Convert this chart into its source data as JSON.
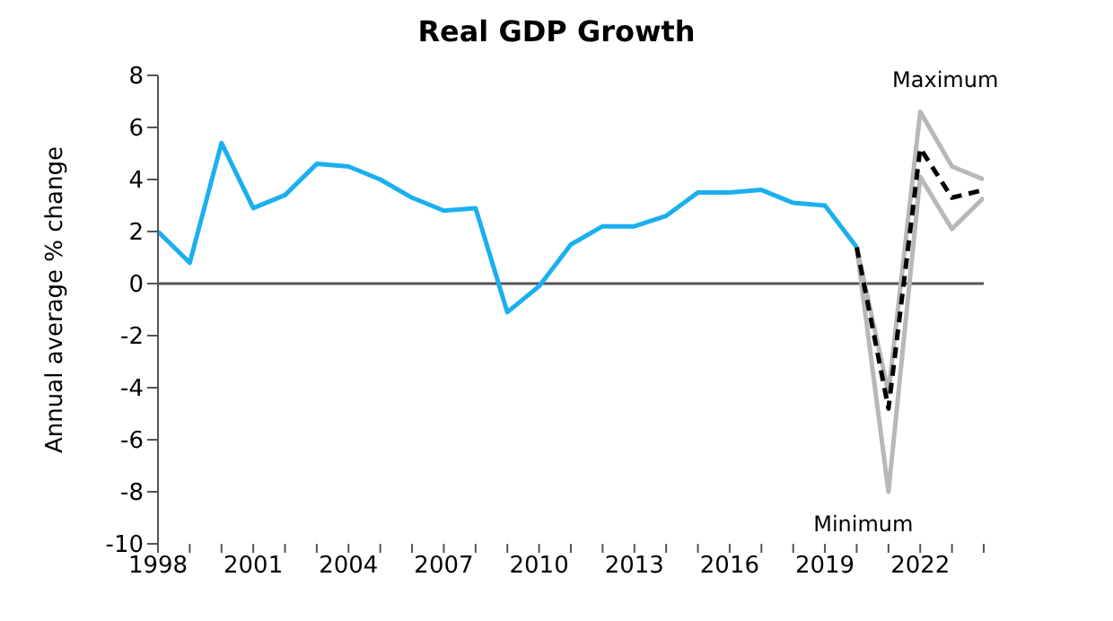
{
  "chart_data": {
    "type": "line",
    "title": "Real GDP Growth",
    "ylabel": "Annual average % change",
    "xlim": [
      1998,
      2024
    ],
    "ylim": [
      -10,
      8
    ],
    "yticks": [
      -10,
      -8,
      -6,
      -4,
      -2,
      0,
      2,
      4,
      6,
      8
    ],
    "xticks": [
      1998,
      {
        "value": 1999,
        "label": null
      },
      {
        "value": 2000,
        "label": null
      },
      2001,
      {
        "value": 2002,
        "label": null
      },
      {
        "value": 2003,
        "label": null
      },
      2004,
      {
        "value": 2005,
        "label": null
      },
      {
        "value": 2006,
        "label": null
      },
      2007,
      {
        "value": 2008,
        "label": null
      },
      {
        "value": 2009,
        "label": null
      },
      2010,
      {
        "value": 2011,
        "label": null
      },
      {
        "value": 2012,
        "label": null
      },
      2013,
      {
        "value": 2014,
        "label": null
      },
      {
        "value": 2015,
        "label": null
      },
      2016,
      {
        "value": 2017,
        "label": null
      },
      {
        "value": 2018,
        "label": null
      },
      2019,
      {
        "value": 2020,
        "label": null
      },
      {
        "value": 2021,
        "label": null
      },
      2022,
      {
        "value": 2023,
        "label": null
      },
      {
        "value": 2024,
        "label": null
      }
    ],
    "grid": false,
    "legend": false,
    "marker": "none",
    "ref_lines": [
      {
        "axis": "y",
        "value": 0,
        "color": "#555555"
      }
    ],
    "series": [
      {
        "color": "#1ab0f0",
        "line_style": "solid",
        "x": [
          1998,
          1999,
          2000,
          2001,
          2002,
          2003,
          2004,
          2005,
          2006,
          2007,
          2008,
          2009,
          2010,
          2011,
          2012,
          2013,
          2014,
          2015,
          2016,
          2017,
          2018,
          2019,
          2020
        ],
        "values": [
          2.0,
          0.8,
          5.4,
          2.9,
          3.4,
          4.6,
          4.5,
          4.0,
          3.3,
          2.8,
          2.9,
          -1.1,
          -0.1,
          1.5,
          2.2,
          2.2,
          2.6,
          3.5,
          3.5,
          3.6,
          3.1,
          3.0,
          1.4
        ]
      },
      {
        "name": "Maximum",
        "color": "#b8b8b8",
        "line_style": "solid",
        "x": [
          2020,
          2021,
          2022,
          2023,
          2024
        ],
        "values": [
          1.4,
          -4.2,
          6.6,
          4.5,
          4.0
        ]
      },
      {
        "name": "Minimum",
        "color": "#b8b8b8",
        "line_style": "solid",
        "x": [
          2020,
          2021,
          2022,
          2023,
          2024
        ],
        "values": [
          1.4,
          -8.0,
          4.1,
          2.1,
          3.3
        ]
      },
      {
        "color": "#000000",
        "line_style": "dashed",
        "x": [
          2020,
          2021,
          2022,
          2023,
          2024
        ],
        "values": [
          1.4,
          -4.8,
          5.2,
          3.3,
          3.6
        ]
      }
    ]
  }
}
